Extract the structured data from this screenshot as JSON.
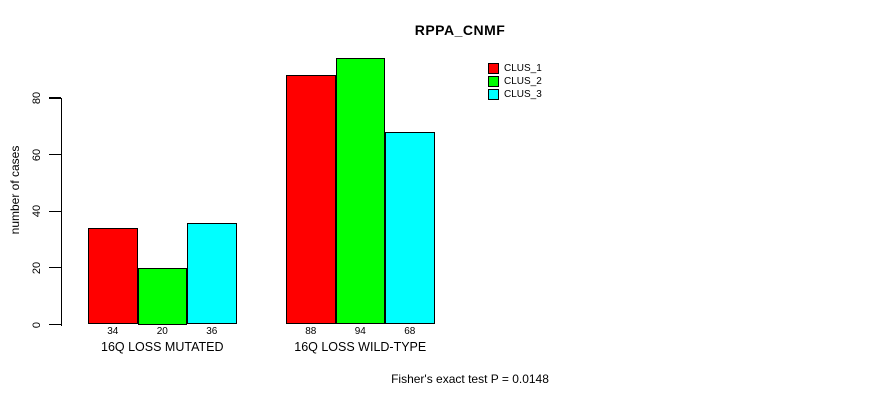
{
  "title": "RPPA_CNMF",
  "footer": "Fisher's exact test P = 0.0148",
  "chart_data": {
    "type": "bar",
    "title": "RPPA_CNMF",
    "categories": [
      "16Q LOSS MUTATED",
      "16Q LOSS WILD-TYPE"
    ],
    "series": [
      {
        "name": "CLUS_1",
        "color": "#FF0000",
        "values": [
          34,
          88
        ]
      },
      {
        "name": "CLUS_2",
        "color": "#00FF00",
        "values": [
          20,
          94
        ]
      },
      {
        "name": "CLUS_3",
        "color": "#00FFFF",
        "values": [
          36,
          68
        ]
      }
    ],
    "xlabel": "",
    "ylabel": "number of cases",
    "yticks": [
      0,
      20,
      40,
      60,
      80
    ],
    "ylim": [
      0,
      94
    ],
    "grid": false,
    "show_bar_values": true,
    "legend_position": "top-right",
    "annotation": "Fisher's exact test P = 0.0148"
  }
}
